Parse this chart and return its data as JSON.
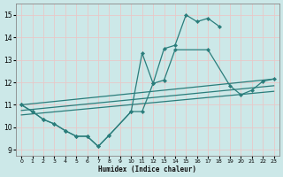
{
  "xlabel": "Humidex (Indice chaleur)",
  "xlim": [
    -0.5,
    23.5
  ],
  "ylim": [
    8.75,
    15.5
  ],
  "yticks": [
    9,
    10,
    11,
    12,
    13,
    14,
    15
  ],
  "xticks": [
    0,
    1,
    2,
    3,
    4,
    5,
    6,
    7,
    8,
    9,
    10,
    11,
    12,
    13,
    14,
    15,
    16,
    17,
    18,
    19,
    20,
    21,
    22,
    23
  ],
  "bg_color": "#cce8e8",
  "grid_color": "#b0d8d8",
  "line_color": "#2a7d7b",
  "series": [
    {
      "x": [
        0,
        1,
        2,
        3,
        4,
        5,
        6,
        7,
        8,
        10,
        11,
        12,
        13,
        14,
        15,
        16,
        17,
        18
      ],
      "y": [
        11.0,
        10.7,
        10.35,
        10.15,
        9.85,
        9.6,
        9.6,
        9.15,
        9.65,
        10.7,
        13.3,
        11.95,
        13.5,
        13.65,
        15.0,
        14.7,
        14.85,
        14.5
      ],
      "marker": true
    },
    {
      "x": [
        0,
        1,
        2,
        3,
        4,
        5,
        6,
        7,
        8,
        10,
        11,
        12,
        13,
        14,
        17,
        19,
        20,
        21,
        22,
        23
      ],
      "y": [
        11.0,
        10.7,
        10.35,
        10.15,
        9.85,
        9.6,
        9.6,
        9.15,
        9.65,
        10.7,
        10.7,
        11.95,
        12.1,
        13.45,
        13.45,
        11.85,
        11.45,
        11.65,
        12.05,
        12.15
      ],
      "marker": true
    },
    {
      "x": [
        0,
        23
      ],
      "y": [
        11.0,
        12.15
      ],
      "marker": false
    },
    {
      "x": [
        0,
        23
      ],
      "y": [
        10.75,
        11.85
      ],
      "marker": false
    },
    {
      "x": [
        0,
        23
      ],
      "y": [
        10.55,
        11.6
      ],
      "marker": false
    }
  ]
}
